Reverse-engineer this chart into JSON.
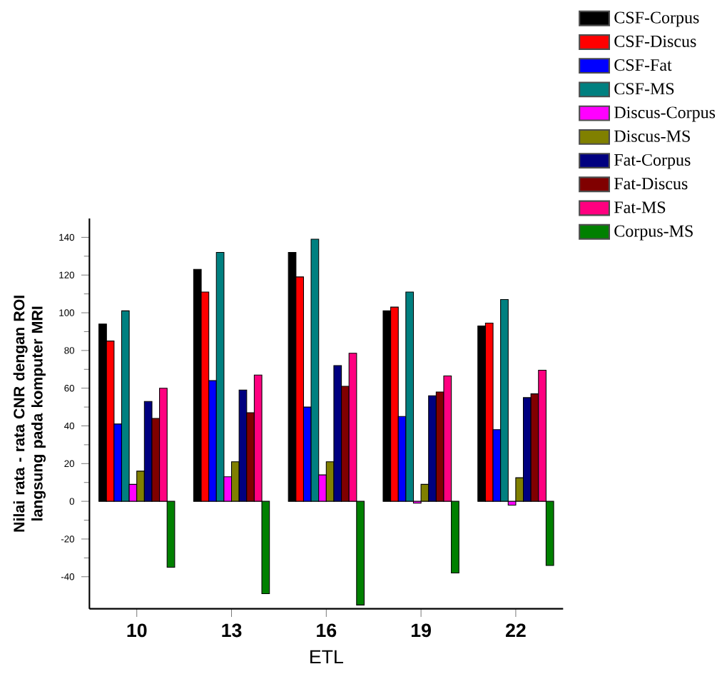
{
  "chart_data": {
    "type": "bar",
    "xlabel": "ETL",
    "ylabel": "Nilai rata - rata CNR dengan ROI langsung pada komputer MRI",
    "categories": [
      "10",
      "13",
      "16",
      "19",
      "22"
    ],
    "ylim": [
      -57,
      150
    ],
    "yticks": [
      -40,
      -20,
      0,
      20,
      40,
      60,
      80,
      100,
      120,
      140
    ],
    "legend": "right",
    "grid": false,
    "series": [
      {
        "name": "CSF-Corpus",
        "color": "#000000",
        "values": [
          94,
          123,
          132,
          101,
          93
        ]
      },
      {
        "name": "CSF-Discus",
        "color": "#ff0000",
        "values": [
          85,
          111,
          119,
          103,
          94.5
        ]
      },
      {
        "name": "CSF-Fat",
        "color": "#0000ff",
        "values": [
          41,
          64,
          50,
          45,
          38
        ]
      },
      {
        "name": "CSF-MS",
        "color": "#008080",
        "values": [
          101,
          132,
          139,
          111,
          107
        ]
      },
      {
        "name": "Discus-Corpus",
        "color": "#ff00ff",
        "values": [
          9,
          13,
          14,
          -1,
          -2
        ]
      },
      {
        "name": "Discus-MS",
        "color": "#808000",
        "values": [
          16,
          21,
          21,
          9,
          12.5
        ]
      },
      {
        "name": "Fat-Corpus",
        "color": "#000080",
        "values": [
          53,
          59,
          72,
          56,
          55
        ]
      },
      {
        "name": "Fat-Discus",
        "color": "#800000",
        "values": [
          44,
          47,
          61,
          58,
          57
        ]
      },
      {
        "name": "Fat-MS",
        "color": "#ff0080",
        "values": [
          60,
          67,
          78.5,
          66.5,
          69.5
        ]
      },
      {
        "name": "Corpus-MS",
        "color": "#008000",
        "values": [
          -35,
          -49,
          -55,
          -38,
          -34
        ]
      }
    ]
  }
}
